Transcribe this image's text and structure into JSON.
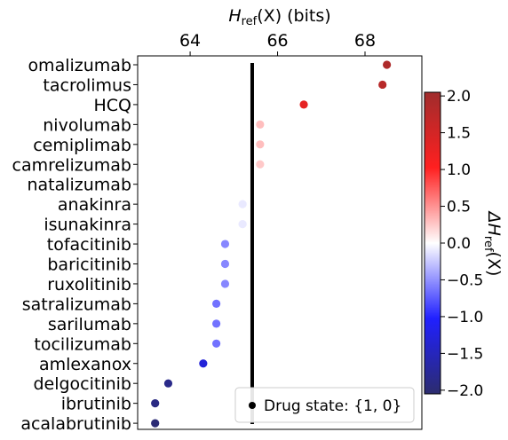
{
  "chart_data": {
    "type": "scatter",
    "title": "",
    "xlabel_prefix": "H",
    "xlabel_sub": "ref",
    "xlabel_suffix": "(X) (bits)",
    "xlim": [
      62.8,
      69.3
    ],
    "xticks": [
      64,
      66,
      68
    ],
    "colorbar": {
      "label_prefix": "ΔH",
      "label_sub": "ref",
      "label_suffix": "(X)",
      "range": [
        -2.05,
        2.05
      ],
      "ticks": [
        2.0,
        1.5,
        1.0,
        0.5,
        0.0,
        -0.5,
        -1.0,
        -1.5,
        -2.0
      ],
      "tick_labels": [
        "2.0",
        "1.5",
        "1.0",
        "0.5",
        "0.0",
        "−0.5",
        "−1.0",
        "−1.5",
        "−2.0"
      ],
      "colormap": [
        "#2c2c6e",
        "#2020ff",
        "#ffffff",
        "#ff2020",
        "#a02c2c"
      ]
    },
    "reference_x": 65.42,
    "legend": {
      "label": "Drug state: {1, 0}",
      "marker_color": "#000000",
      "position": "lower right"
    },
    "categories": [
      "omalizumab",
      "tacrolimus",
      "HCQ",
      "nivolumab",
      "cemiplimab",
      "camrelizumab",
      "natalizumab",
      "anakinra",
      "isunakinra",
      "tofacitinib",
      "baricitinib",
      "ruxolitinib",
      "satralizumab",
      "sarilumab",
      "tocilizumab",
      "amlexanox",
      "delgocitinib",
      "ibrutinib",
      "acalabrutinib"
    ],
    "x": [
      68.5,
      68.4,
      66.6,
      65.6,
      65.6,
      65.6,
      null,
      65.2,
      65.2,
      64.8,
      64.8,
      64.8,
      64.6,
      64.6,
      64.6,
      64.3,
      63.5,
      63.2,
      63.2
    ],
    "delta": [
      1.9,
      1.8,
      1.3,
      0.3,
      0.3,
      0.25,
      null,
      -0.1,
      -0.1,
      -0.55,
      -0.55,
      -0.55,
      -0.65,
      -0.65,
      -0.65,
      -1.3,
      -1.85,
      -1.9,
      -2.0
    ]
  }
}
